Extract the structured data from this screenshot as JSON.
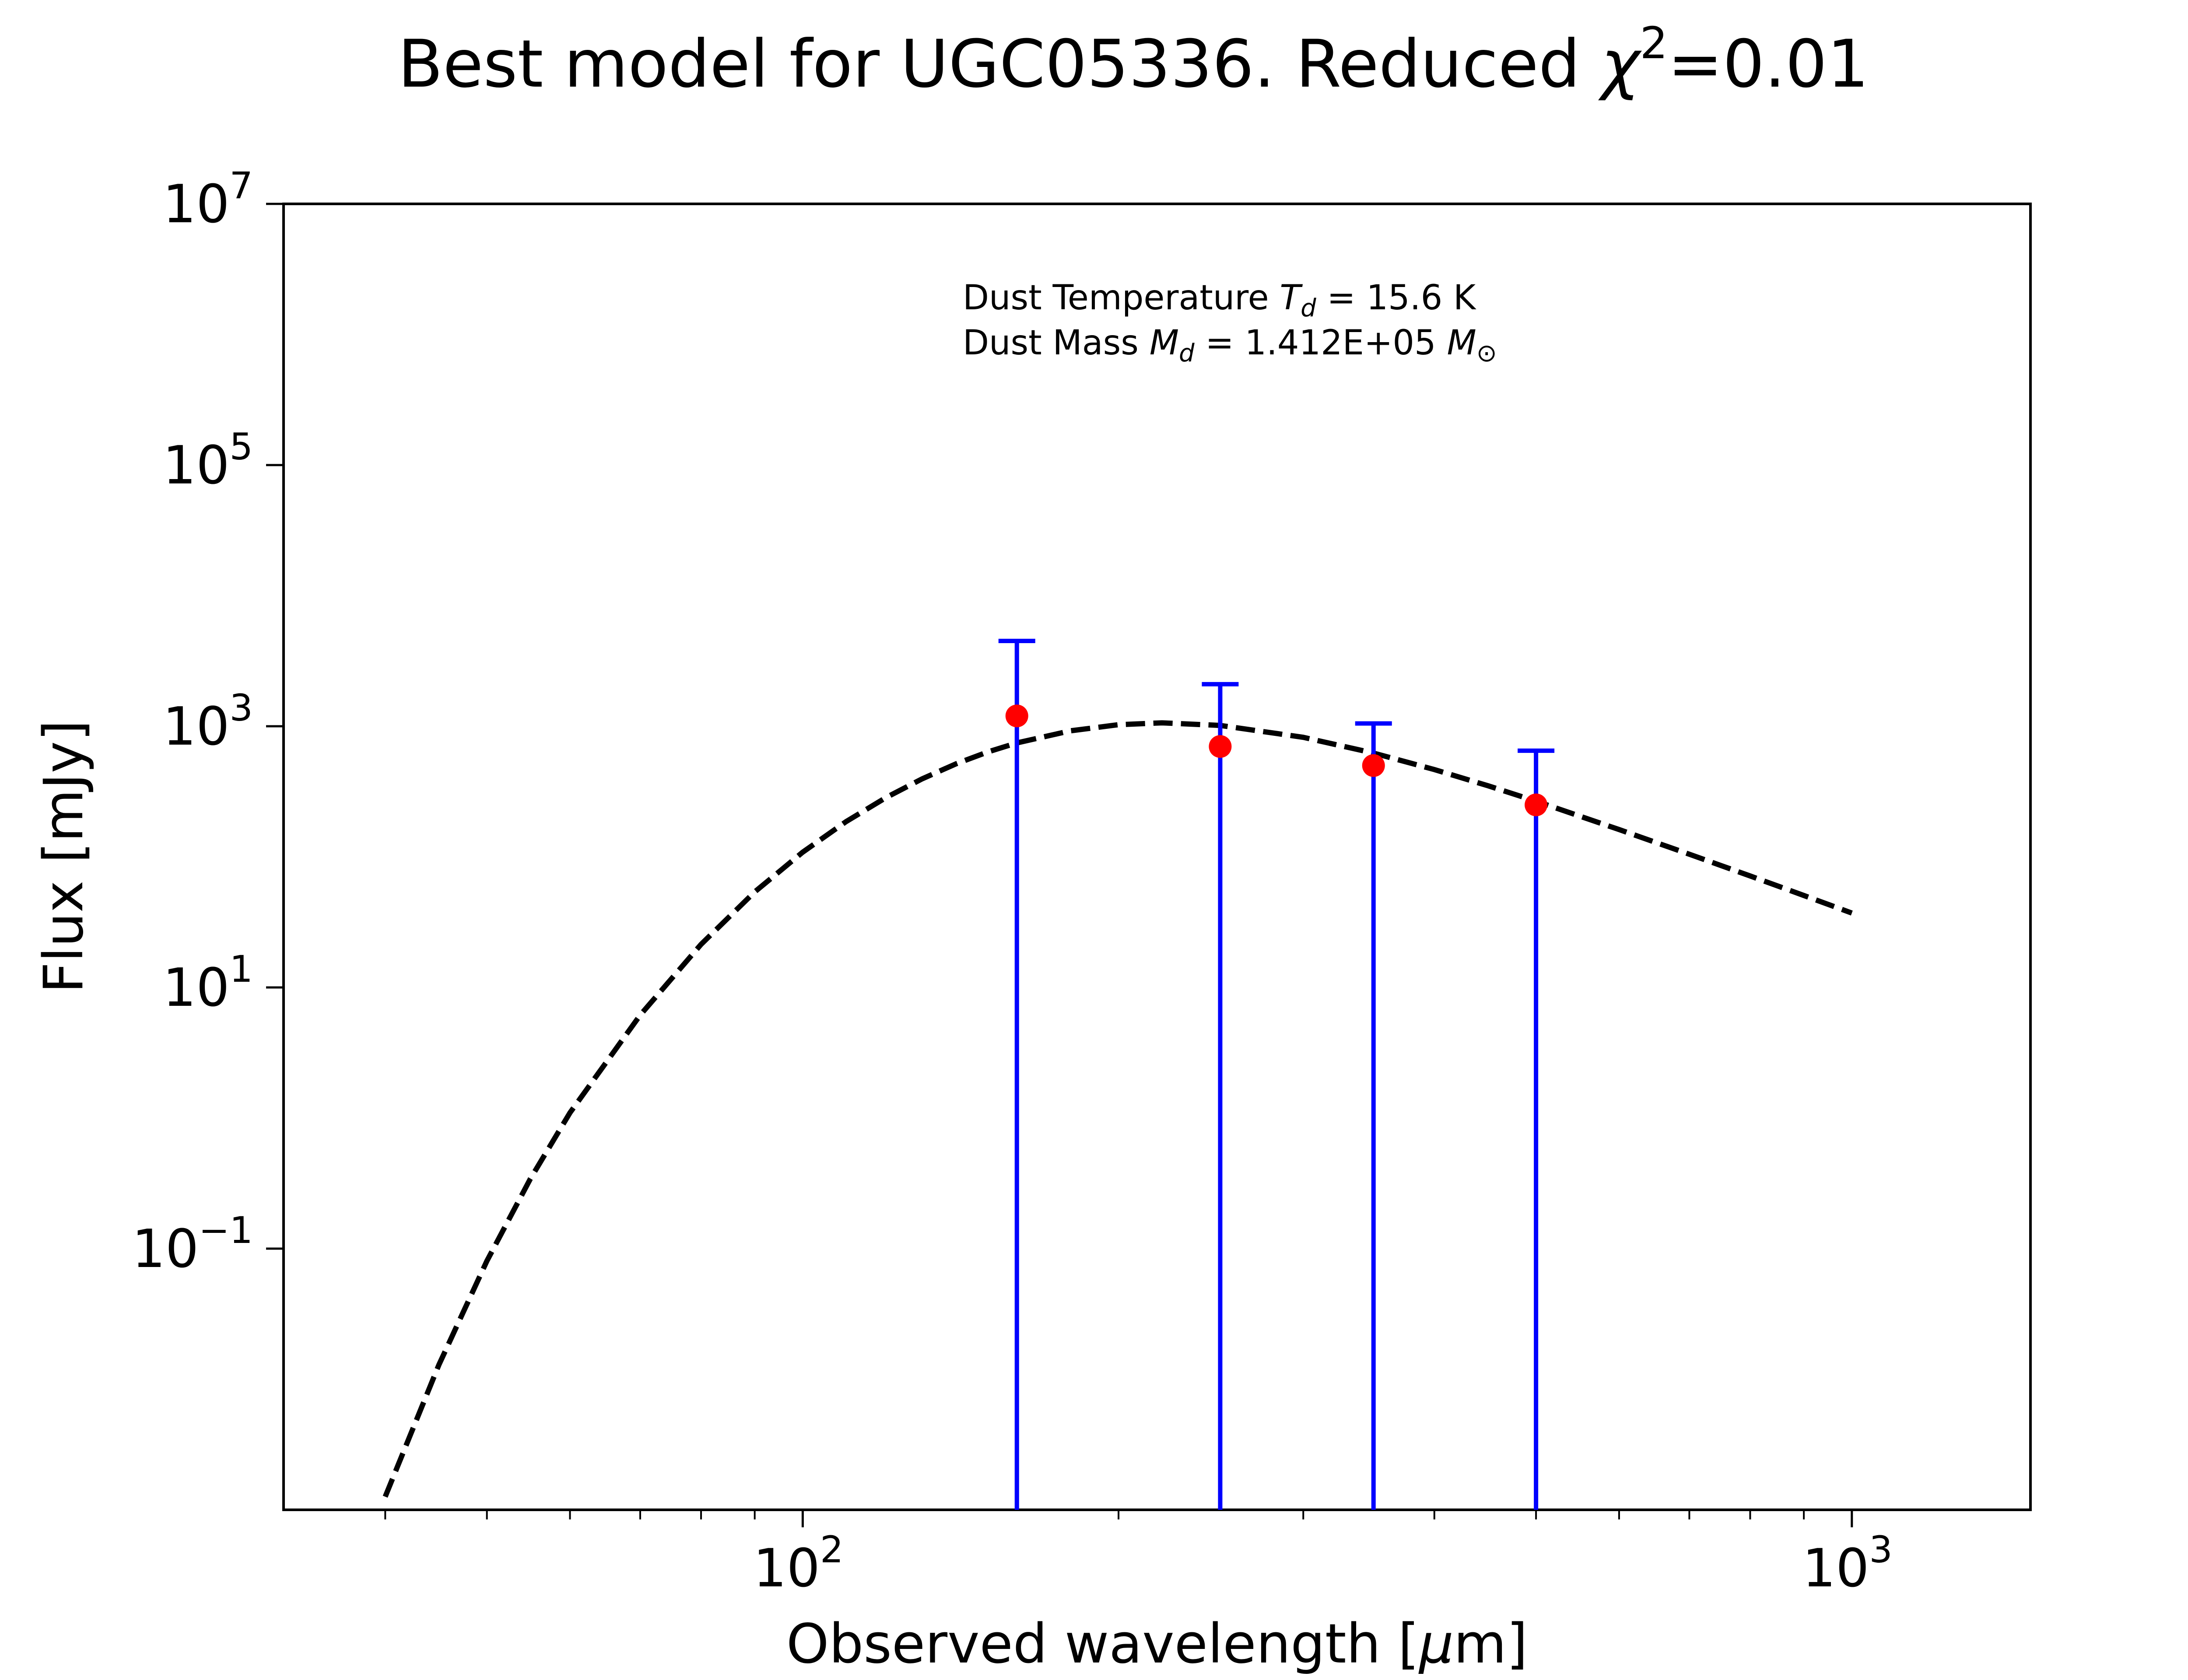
{
  "chart_data": {
    "type": "scatter",
    "title": "Best model for UGC05336. Reduced χ²=0.01",
    "title_parts": {
      "prefix": "Best model for UGC05336. Reduced ",
      "chi": "χ",
      "sup": "2",
      "suffix": "=0.01"
    },
    "xlabel": "Observed wavelength [μm]",
    "xlabel_parts": {
      "prefix": "Observed wavelength [",
      "mu": "μ",
      "suffix": "m]"
    },
    "ylabel": "Flux [mJy]",
    "x_scale": "log",
    "y_scale": "log",
    "xlim": [
      32,
      1480
    ],
    "ylim": [
      0.001,
      10000000
    ],
    "grid": false,
    "x_ticks": [
      {
        "base": "10",
        "exp": "2",
        "value": 100
      },
      {
        "base": "10",
        "exp": "3",
        "value": 1000
      }
    ],
    "y_ticks": [
      {
        "base": "10",
        "exp": "7",
        "value": 10000000
      },
      {
        "base": "10",
        "exp": "5",
        "value": 100000
      },
      {
        "base": "10",
        "exp": "3",
        "value": 1000
      },
      {
        "base": "10",
        "exp": "1",
        "value": 10
      },
      {
        "base": "10",
        "exp": "−1",
        "value": 0.1
      }
    ],
    "annotation": {
      "line1": {
        "prefix": "Dust Temperature ",
        "sym": "T",
        "sub": "d",
        "suffix": " = 15.6 K"
      },
      "line2": {
        "prefix": "Dust Mass ",
        "sym": "M",
        "sub": "d",
        "mid": " = 1.412E+05 ",
        "sym2": "M",
        "sub2": "⊙"
      }
    },
    "series": [
      {
        "kind": "model",
        "style": "dashed",
        "color": "#000000",
        "x": [
          40,
          45,
          50,
          55,
          60,
          70,
          80,
          90,
          100,
          110,
          120,
          130,
          140,
          150,
          160,
          180,
          200,
          220,
          250,
          300,
          350,
          400,
          450,
          500,
          600,
          700,
          800,
          900,
          1000
        ],
        "y": [
          0.00126,
          0.0129,
          0.0805,
          0.342,
          1.098,
          6.14,
          21.37,
          53.9,
          108.6,
          186.2,
          283.8,
          396.1,
          515.6,
          634.5,
          745.3,
          922.6,
          1028,
          1062,
          1015,
          822.5,
          623.3,
          465.8,
          350.3,
          266.8,
          161.8,
          104.7,
          71.4,
          50.6,
          37.1
        ]
      },
      {
        "kind": "observed",
        "marker_color": "#ff0000",
        "errorbar_color": "#0000ff",
        "x": [
          160,
          250,
          350,
          500
        ],
        "y": [
          1200,
          700,
          500,
          250
        ],
        "y_err_upper": [
          4500,
          2100,
          1050,
          650
        ],
        "y_err_lower": [
          0.001,
          0.001,
          0.001,
          0.001
        ]
      }
    ]
  }
}
